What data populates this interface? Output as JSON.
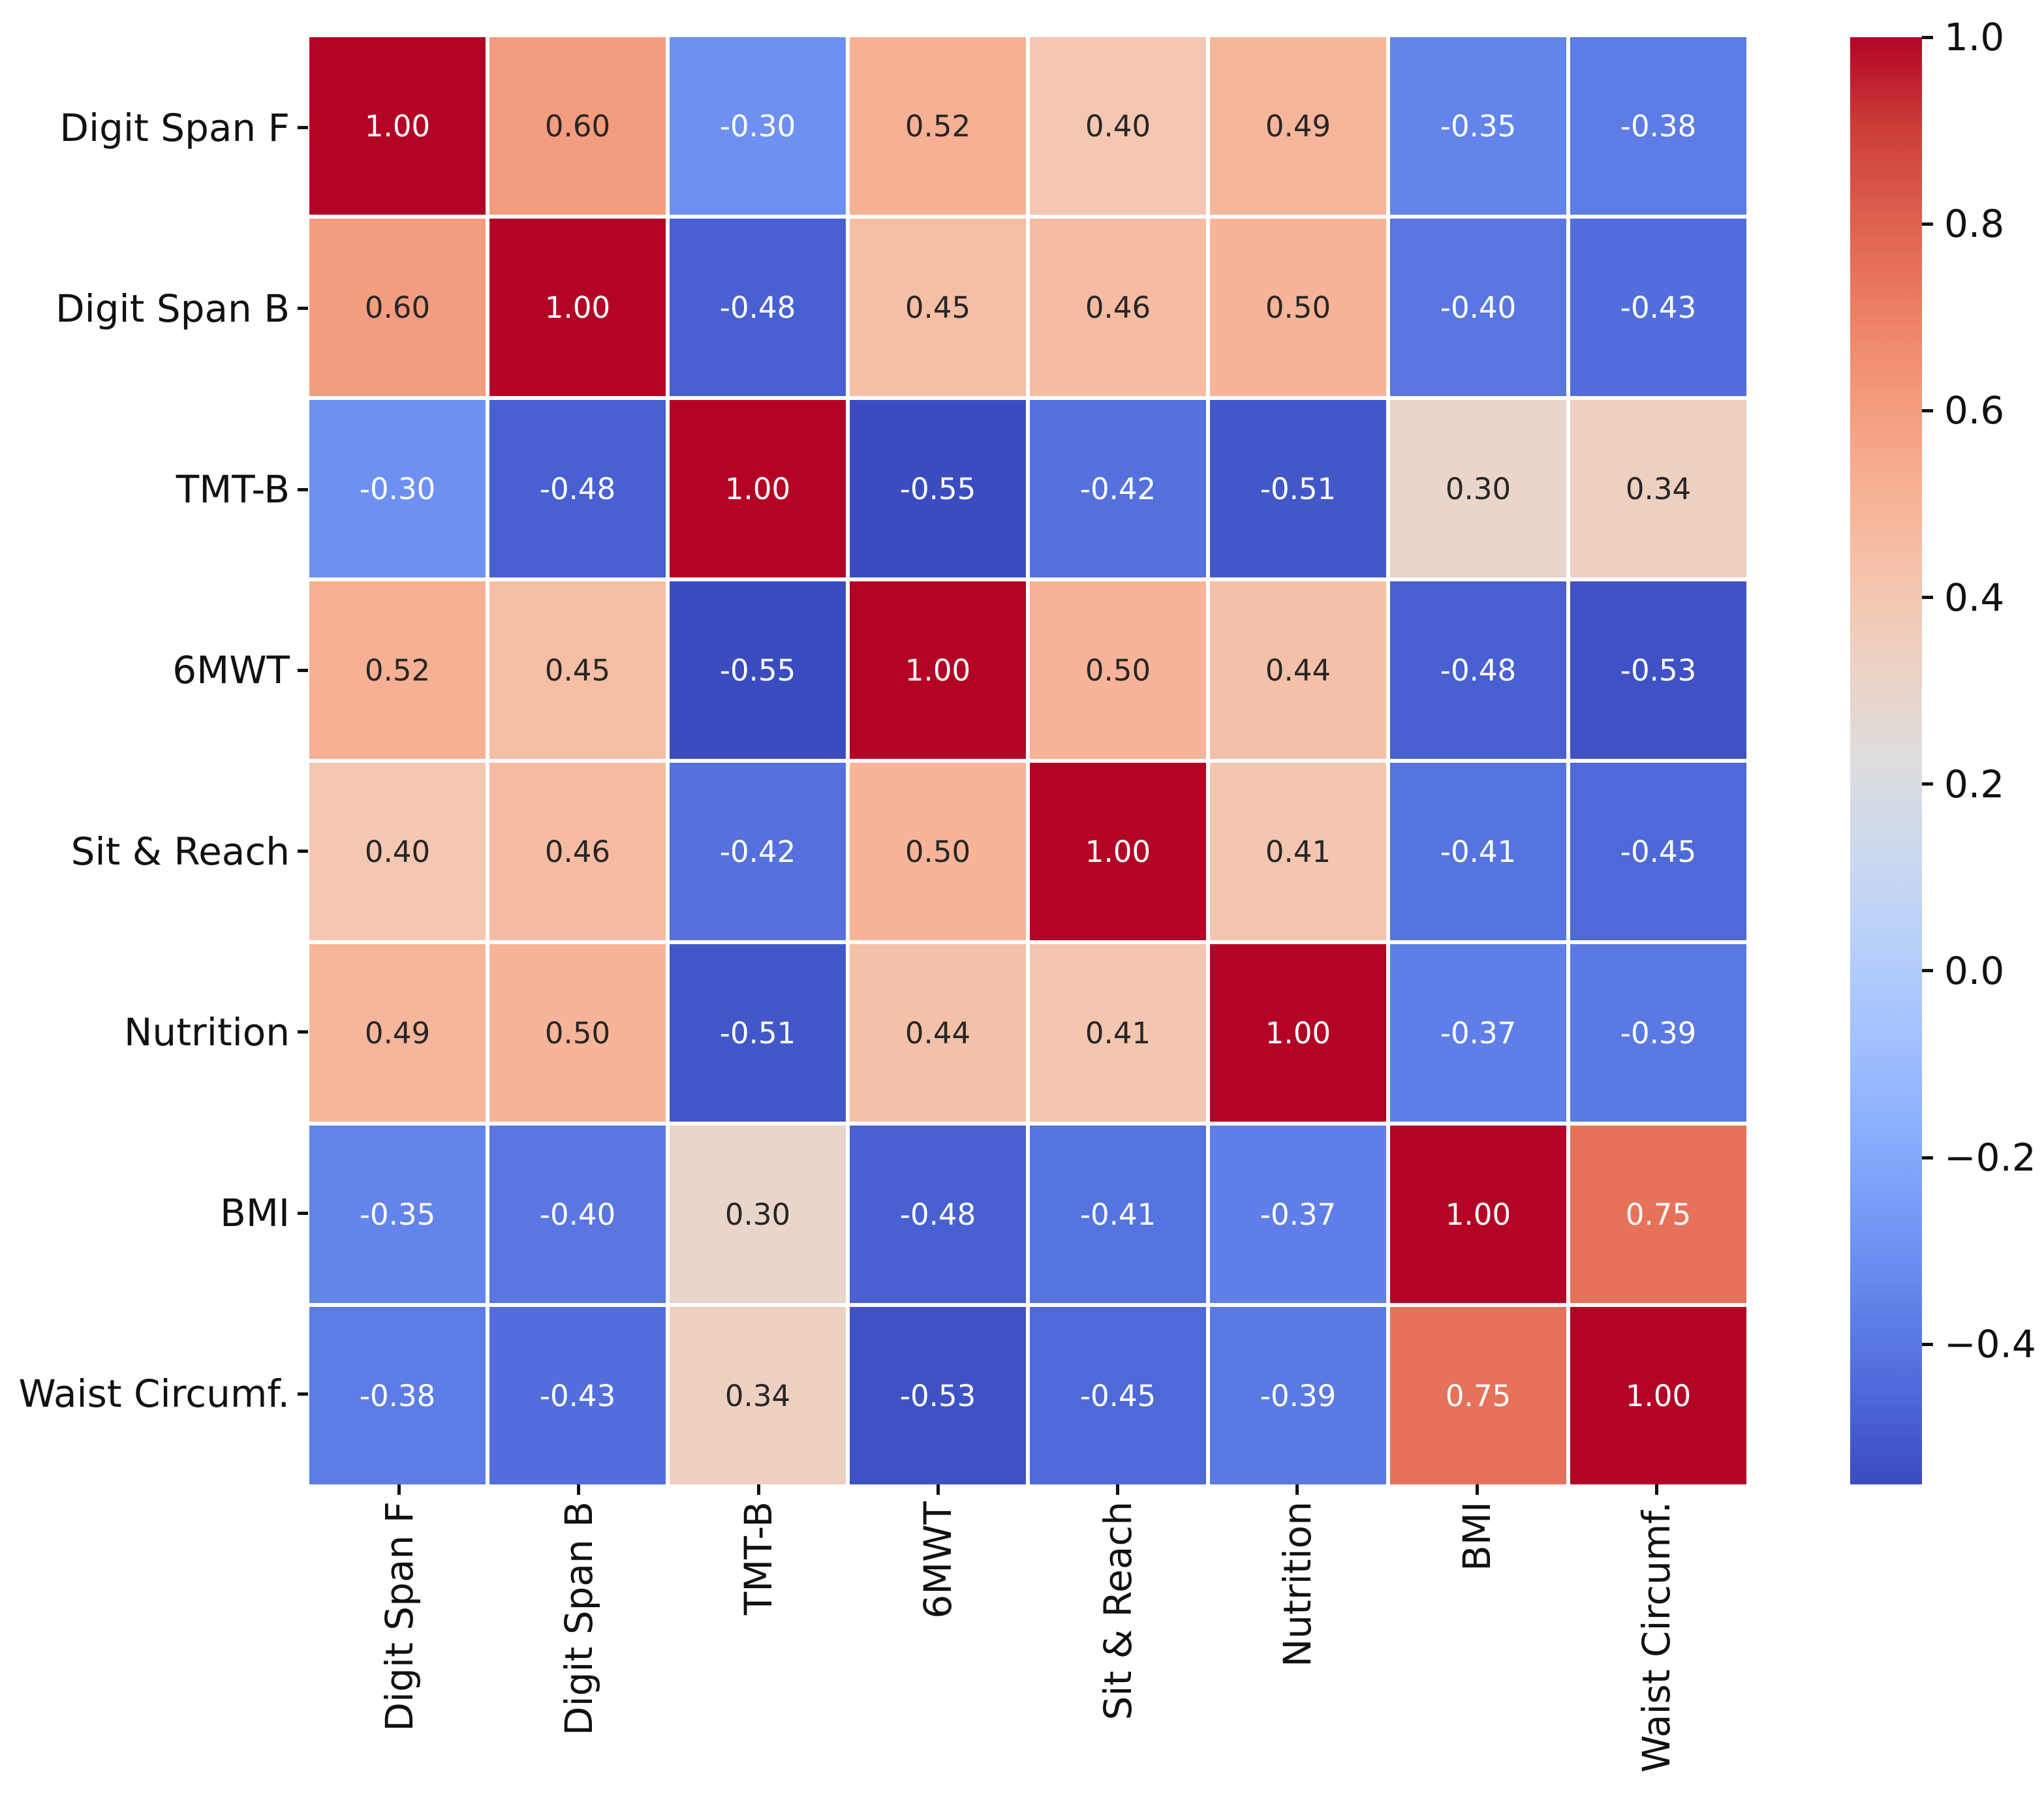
{
  "figure": {
    "background": "#ffffff"
  },
  "chart_data": {
    "type": "heatmap",
    "title": "",
    "categories": [
      "Digit Span F",
      "Digit Span B",
      "TMT-B",
      "6MWT",
      "Sit & Reach",
      "Nutrition",
      "BMI",
      "Waist Circumf."
    ],
    "matrix": [
      [
        1.0,
        0.6,
        -0.3,
        0.52,
        0.4,
        0.49,
        -0.35,
        -0.38
      ],
      [
        0.6,
        1.0,
        -0.48,
        0.45,
        0.46,
        0.5,
        -0.4,
        -0.43
      ],
      [
        -0.3,
        -0.48,
        1.0,
        -0.55,
        -0.42,
        -0.51,
        0.3,
        0.34
      ],
      [
        0.52,
        0.45,
        -0.55,
        1.0,
        0.5,
        0.44,
        -0.48,
        -0.53
      ],
      [
        0.4,
        0.46,
        -0.42,
        0.5,
        1.0,
        0.41,
        -0.41,
        -0.45
      ],
      [
        0.49,
        0.5,
        -0.51,
        0.44,
        0.41,
        1.0,
        -0.37,
        -0.39
      ],
      [
        -0.35,
        -0.4,
        0.3,
        -0.48,
        -0.41,
        -0.37,
        1.0,
        0.75
      ],
      [
        -0.38,
        -0.43,
        0.34,
        -0.53,
        -0.45,
        -0.39,
        0.75,
        1.0
      ]
    ],
    "annotation_decimals": 2,
    "grid_line_color": "#ffffff",
    "cell_text_dark": "#262626",
    "cell_text_light": "#ffffff",
    "axis_text_color": "#111111",
    "colormap": {
      "name": "coolwarm",
      "vmin": -0.55,
      "vmax": 1.0,
      "anchors": [
        [
          0.0,
          59,
          76,
          192
        ],
        [
          0.0625,
          77,
          104,
          215
        ],
        [
          0.125,
          98,
          130,
          234
        ],
        [
          0.1875,
          119,
          154,
          247
        ],
        [
          0.25,
          141,
          176,
          254
        ],
        [
          0.3125,
          163,
          194,
          255
        ],
        [
          0.375,
          184,
          208,
          249
        ],
        [
          0.4375,
          204,
          217,
          238
        ],
        [
          0.5,
          221,
          221,
          221
        ],
        [
          0.5625,
          236,
          211,
          197
        ],
        [
          0.625,
          245,
          196,
          173
        ],
        [
          0.6875,
          247,
          177,
          148
        ],
        [
          0.75,
          244,
          154,
          123
        ],
        [
          0.8125,
          236,
          127,
          99
        ],
        [
          0.875,
          222,
          96,
          77
        ],
        [
          0.9375,
          203,
          62,
          56
        ],
        [
          1.0,
          180,
          4,
          38
        ]
      ]
    },
    "colorbar": {
      "position": "right",
      "ticks": [
        1.0,
        0.8,
        0.6,
        0.4,
        0.2,
        0.0,
        -0.2,
        -0.4
      ],
      "tick_decimals": 1,
      "minus_sign": "−"
    },
    "legend": null,
    "grid": false
  }
}
